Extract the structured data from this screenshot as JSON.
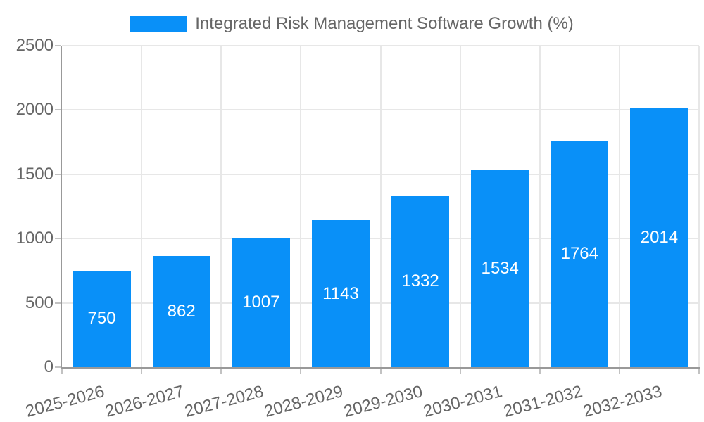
{
  "chart_data": {
    "type": "bar",
    "title": "",
    "categories": [
      "2025-2026",
      "2026-2027",
      "2027-2028",
      "2028-2029",
      "2029-2030",
      "2030-2031",
      "2031-2032",
      "2032-2033"
    ],
    "series": [
      {
        "name": "Integrated Risk Management Software Growth (%)",
        "values": [
          750,
          862,
          1007,
          1143,
          1332,
          1534,
          1764,
          2014
        ]
      }
    ],
    "xlabel": "",
    "ylabel": "",
    "ylim": [
      0,
      2500
    ],
    "yticks": [
      0,
      500,
      1000,
      1500,
      2000,
      2500
    ],
    "grid": true,
    "legend_position": "top",
    "value_labels": "inside-center",
    "colors": {
      "bar": "#0990f8",
      "value_label": "#ffffff",
      "axis_line": "#999999",
      "grid_line": "#e7e7e7",
      "tick_mark": "#c2c2c2",
      "tick_label": "#666666",
      "background": "#ffffff"
    }
  }
}
